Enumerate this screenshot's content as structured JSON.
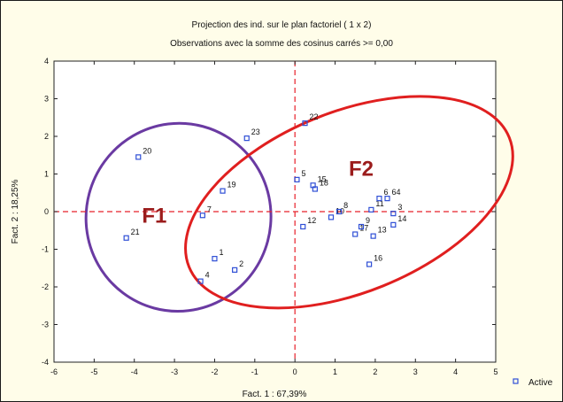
{
  "chart_data": {
    "type": "scatter",
    "title": "Projection des ind. sur le plan factoriel ( 1 x  2)",
    "subtitle": "Observations avec la somme des cosinus carrés >=  0,00",
    "xlabel": "Fact. 1 : 67,39%",
    "ylabel": "Fact. 2 : 18,25%",
    "xlim": [
      -6,
      5
    ],
    "ylim": [
      -4,
      4
    ],
    "xticks": [
      -6,
      -5,
      -4,
      -3,
      -2,
      -1,
      0,
      1,
      2,
      3,
      4,
      5
    ],
    "yticks": [
      -4,
      -3,
      -2,
      -1,
      0,
      1,
      2,
      3,
      4
    ],
    "grid": false,
    "reference_lines": {
      "x": 0,
      "y": 0,
      "color": "#e8202a",
      "style": "dashed"
    },
    "legend": {
      "position": "bottom-right",
      "entries": [
        "Active"
      ]
    },
    "series": [
      {
        "name": "Active",
        "color": "#2f4fd6",
        "points": [
          {
            "label": "20",
            "x": -3.9,
            "y": 1.45
          },
          {
            "label": "21",
            "x": -4.2,
            "y": -0.7
          },
          {
            "label": "7",
            "x": -2.3,
            "y": -0.1
          },
          {
            "label": "19",
            "x": -1.8,
            "y": 0.55
          },
          {
            "label": "1",
            "x": -2.0,
            "y": -1.25
          },
          {
            "label": "2",
            "x": -1.5,
            "y": -1.55
          },
          {
            "label": "4",
            "x": -2.35,
            "y": -1.85
          },
          {
            "label": "23",
            "x": -1.2,
            "y": 1.95
          },
          {
            "label": "22",
            "x": 0.25,
            "y": 2.35
          },
          {
            "label": "5",
            "x": 0.05,
            "y": 0.85
          },
          {
            "label": "15",
            "x": 0.45,
            "y": 0.7
          },
          {
            "label": "18",
            "x": 0.5,
            "y": 0.6
          },
          {
            "label": "12",
            "x": 0.2,
            "y": -0.4
          },
          {
            "label": "10",
            "x": 0.9,
            "y": -0.15
          },
          {
            "label": "8",
            "x": 1.1,
            "y": 0.0
          },
          {
            "label": "17",
            "x": 1.5,
            "y": -0.6
          },
          {
            "label": "9",
            "x": 1.65,
            "y": -0.4
          },
          {
            "label": "11",
            "x": 1.9,
            "y": 0.05
          },
          {
            "label": "6",
            "x": 2.1,
            "y": 0.35
          },
          {
            "label": "64",
            "x": 2.3,
            "y": 0.35
          },
          {
            "label": "13",
            "x": 1.95,
            "y": -0.65
          },
          {
            "label": "14",
            "x": 2.45,
            "y": -0.35
          },
          {
            "label": "3",
            "x": 2.45,
            "y": -0.05
          },
          {
            "label": "16",
            "x": 1.85,
            "y": -1.4
          }
        ]
      }
    ],
    "annotations": [
      {
        "text": "F1",
        "x": -3.5,
        "y": -0.15,
        "color": "#9b1c1c"
      },
      {
        "text": "F2",
        "x": 1.65,
        "y": 1.1,
        "color": "#9b1c1c"
      }
    ],
    "ellipses": [
      {
        "name": "F1",
        "color": "#6a3aa2",
        "cx": -2.9,
        "cy": -0.15,
        "rx": 2.3,
        "ry": 2.5,
        "rotation_deg": -15
      },
      {
        "name": "F2",
        "color": "#e01f1f",
        "cx": 1.35,
        "cy": 0.25,
        "rx": 4.3,
        "ry": 2.4,
        "rotation_deg": 22
      }
    ]
  }
}
